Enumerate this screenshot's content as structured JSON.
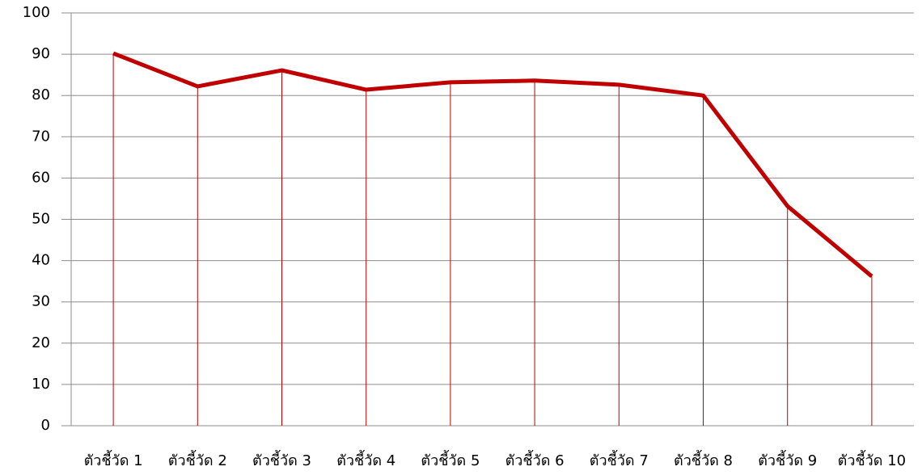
{
  "chart_data": {
    "type": "line",
    "categories": [
      "ตัวชี้วัด 1",
      "ตัวชี้วัด 2",
      "ตัวชี้วัด 3",
      "ตัวชี้วัด 4",
      "ตัวชี้วัด 5",
      "ตัวชี้วัด 6",
      "ตัวชี้วัด 7",
      "ตัวชี้วัด 8",
      "ตัวชี้วัด 9",
      "ตัวชี้วัด 10"
    ],
    "values": [
      90.2,
      82.2,
      86.1,
      81.4,
      83.2,
      83.6,
      82.6,
      80.0,
      53.2,
      36.2
    ],
    "color": "#c00000",
    "drop_lines": true,
    "drop_line_color": "#c00000",
    "ylim": [
      0,
      100
    ],
    "yticks": [
      0,
      10,
      20,
      30,
      40,
      50,
      60,
      70,
      80,
      90,
      100
    ],
    "grid": true
  }
}
